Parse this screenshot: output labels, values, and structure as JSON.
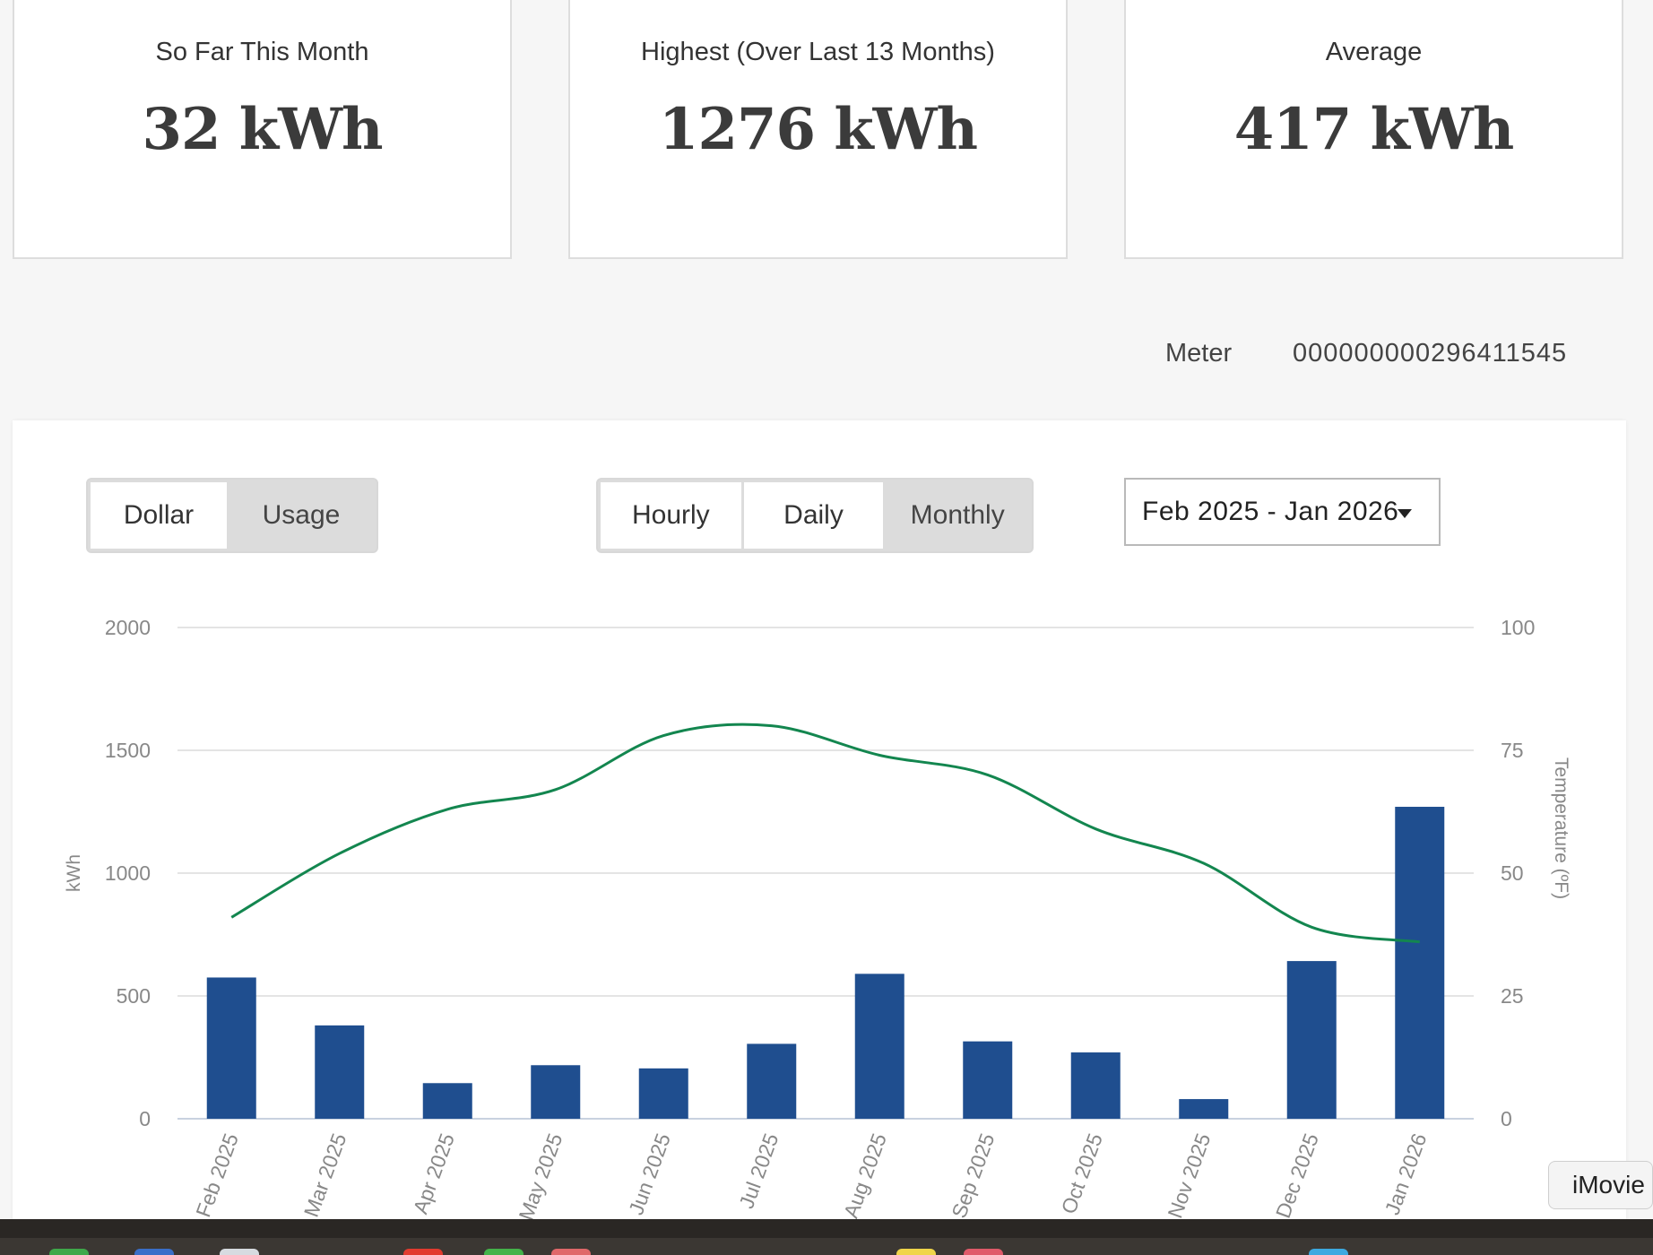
{
  "stats": [
    {
      "label": "So Far This Month",
      "value": "32 kWh"
    },
    {
      "label": "Highest (Over Last 13 Months)",
      "value": "1276 kWh"
    },
    {
      "label": "Average",
      "value": "417 kWh"
    }
  ],
  "meter": {
    "label": "Meter",
    "value": "000000000296411545"
  },
  "controls": {
    "units": [
      "Dollar",
      "Usage"
    ],
    "units_selected": "Usage",
    "intervals": [
      "Hourly",
      "Daily",
      "Monthly"
    ],
    "interval_selected": "Monthly",
    "range": "Feb 2025 - Jan 2026"
  },
  "chart_data": {
    "type": "bar",
    "categories": [
      "Feb 2025",
      "Mar 2025",
      "Apr 2025",
      "May 2025",
      "Jun 2025",
      "Jul 2025",
      "Aug 2025",
      "Sep 2025",
      "Oct 2025",
      "Nov 2025",
      "Dec 2025",
      "Jan 2026"
    ],
    "series": [
      {
        "type": "bar",
        "axis": "left",
        "color": "#1f4e8f",
        "values": [
          575,
          380,
          145,
          218,
          205,
          305,
          590,
          315,
          270,
          80,
          642,
          1270
        ]
      },
      {
        "type": "line",
        "axis": "right",
        "color": "#13864f",
        "values": [
          41,
          54,
          63,
          67,
          78,
          80,
          74,
          70,
          59,
          52,
          39,
          36
        ]
      }
    ],
    "ylabel": "kWh",
    "y2label": "Temperature (ºF)",
    "ylim": [
      0,
      2000
    ],
    "y2lim": [
      0,
      100
    ],
    "yticks": [
      0,
      500,
      1000,
      1500,
      2000
    ],
    "y2ticks": [
      0,
      25,
      50,
      75,
      100
    ],
    "grid": true
  },
  "dock": {
    "tooltip": "iMovie"
  }
}
